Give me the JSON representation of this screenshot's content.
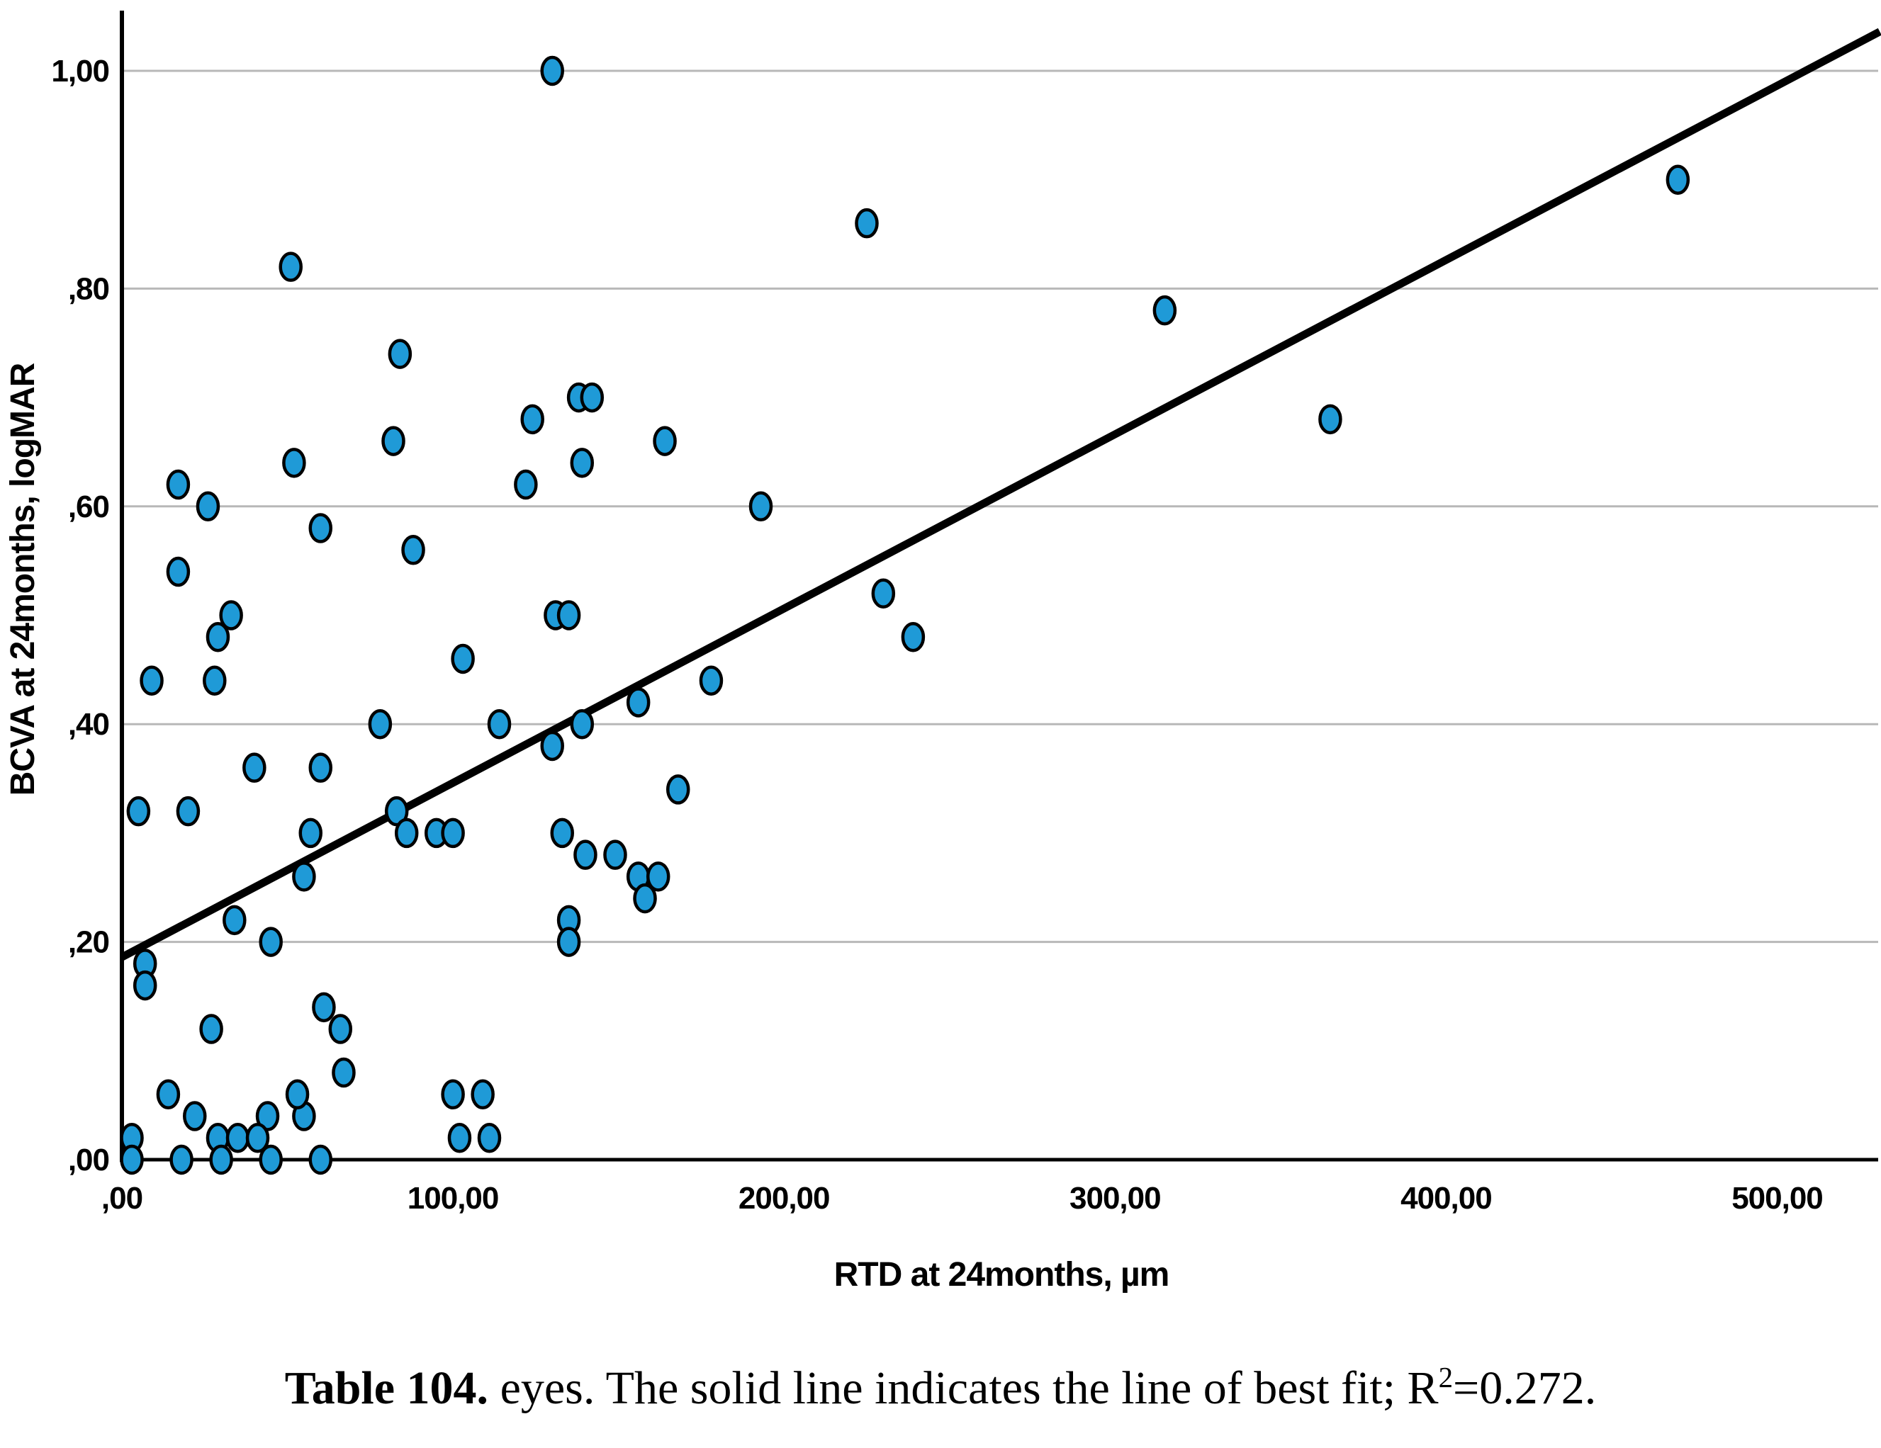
{
  "chart_data": {
    "type": "scatter",
    "title": "",
    "xlabel": "RTD at 24months, µm",
    "ylabel": "BCVA at 24months, logMAR",
    "xlim": [
      0,
      531
    ],
    "ylim": [
      0,
      1.06
    ],
    "grid": "horizontal-only",
    "legend": "none",
    "x_ticks": [
      {
        "value": 0,
        "label": ",00"
      },
      {
        "value": 100,
        "label": "100,00"
      },
      {
        "value": 200,
        "label": "200,00"
      },
      {
        "value": 300,
        "label": "300,00"
      },
      {
        "value": 400,
        "label": "400,00"
      },
      {
        "value": 500,
        "label": "500,00"
      }
    ],
    "y_ticks": [
      {
        "value": 0.0,
        "label": ",00"
      },
      {
        "value": 0.2,
        "label": ",20"
      },
      {
        "value": 0.4,
        "label": ",40"
      },
      {
        "value": 0.6,
        "label": ",60"
      },
      {
        "value": 0.8,
        "label": ",80"
      },
      {
        "value": 1.0,
        "label": "1,00"
      }
    ],
    "points": [
      [
        130,
        1.0
      ],
      [
        225,
        0.86
      ],
      [
        51,
        0.82
      ],
      [
        315,
        0.78
      ],
      [
        84,
        0.74
      ],
      [
        138,
        0.7
      ],
      [
        142,
        0.7
      ],
      [
        365,
        0.68
      ],
      [
        124,
        0.68
      ],
      [
        164,
        0.66
      ],
      [
        82,
        0.66
      ],
      [
        139,
        0.64
      ],
      [
        52,
        0.64
      ],
      [
        470,
        0.9
      ],
      [
        17,
        0.62
      ],
      [
        122,
        0.62
      ],
      [
        26,
        0.6
      ],
      [
        193,
        0.6
      ],
      [
        60,
        0.58
      ],
      [
        88,
        0.56
      ],
      [
        17,
        0.54
      ],
      [
        230,
        0.52
      ],
      [
        33,
        0.5
      ],
      [
        131,
        0.5
      ],
      [
        135,
        0.5
      ],
      [
        239,
        0.48
      ],
      [
        29,
        0.48
      ],
      [
        103,
        0.46
      ],
      [
        9,
        0.44
      ],
      [
        178,
        0.44
      ],
      [
        28,
        0.44
      ],
      [
        156,
        0.42
      ],
      [
        78,
        0.4
      ],
      [
        114,
        0.4
      ],
      [
        139,
        0.4
      ],
      [
        130,
        0.38
      ],
      [
        40,
        0.36
      ],
      [
        60,
        0.36
      ],
      [
        168,
        0.34
      ],
      [
        20,
        0.32
      ],
      [
        5,
        0.32
      ],
      [
        57,
        0.3
      ],
      [
        83,
        0.32
      ],
      [
        86,
        0.3
      ],
      [
        95,
        0.3
      ],
      [
        100,
        0.3
      ],
      [
        133,
        0.3
      ],
      [
        140,
        0.28
      ],
      [
        149,
        0.28
      ],
      [
        156,
        0.26
      ],
      [
        162,
        0.26
      ],
      [
        158,
        0.24
      ],
      [
        135,
        0.22
      ],
      [
        135,
        0.2
      ],
      [
        55,
        0.26
      ],
      [
        34,
        0.22
      ],
      [
        45,
        0.2
      ],
      [
        7,
        0.18
      ],
      [
        7,
        0.16
      ],
      [
        27,
        0.12
      ],
      [
        61,
        0.14
      ],
      [
        66,
        0.12
      ],
      [
        67,
        0.08
      ],
      [
        14,
        0.06
      ],
      [
        44,
        0.04
      ],
      [
        55,
        0.04
      ],
      [
        53,
        0.06
      ],
      [
        22,
        0.04
      ],
      [
        3,
        0.02
      ],
      [
        29,
        0.02
      ],
      [
        35,
        0.02
      ],
      [
        41,
        0.02
      ],
      [
        100,
        0.06
      ],
      [
        109,
        0.06
      ],
      [
        102,
        0.02
      ],
      [
        111,
        0.02
      ],
      [
        3,
        0.0
      ],
      [
        18,
        0.0
      ],
      [
        30,
        0.0
      ],
      [
        45,
        0.0
      ],
      [
        60,
        0.0
      ]
    ],
    "fit_line": {
      "x1": 0,
      "y1": 0.186,
      "x2": 531,
      "y2": 1.036
    },
    "r_squared": "0.272"
  },
  "caption": {
    "bold_prefix": "Table 104.",
    "body": " eyes. The solid line indicates the line of best fit; R",
    "sup": "2",
    "suffix": "=0.272."
  },
  "style": {
    "point_fill": "#1F9AD7",
    "point_stroke": "#000000",
    "grid_color": "#B8B8B8",
    "axis_color": "#000000",
    "fit_line_color": "#000000"
  }
}
